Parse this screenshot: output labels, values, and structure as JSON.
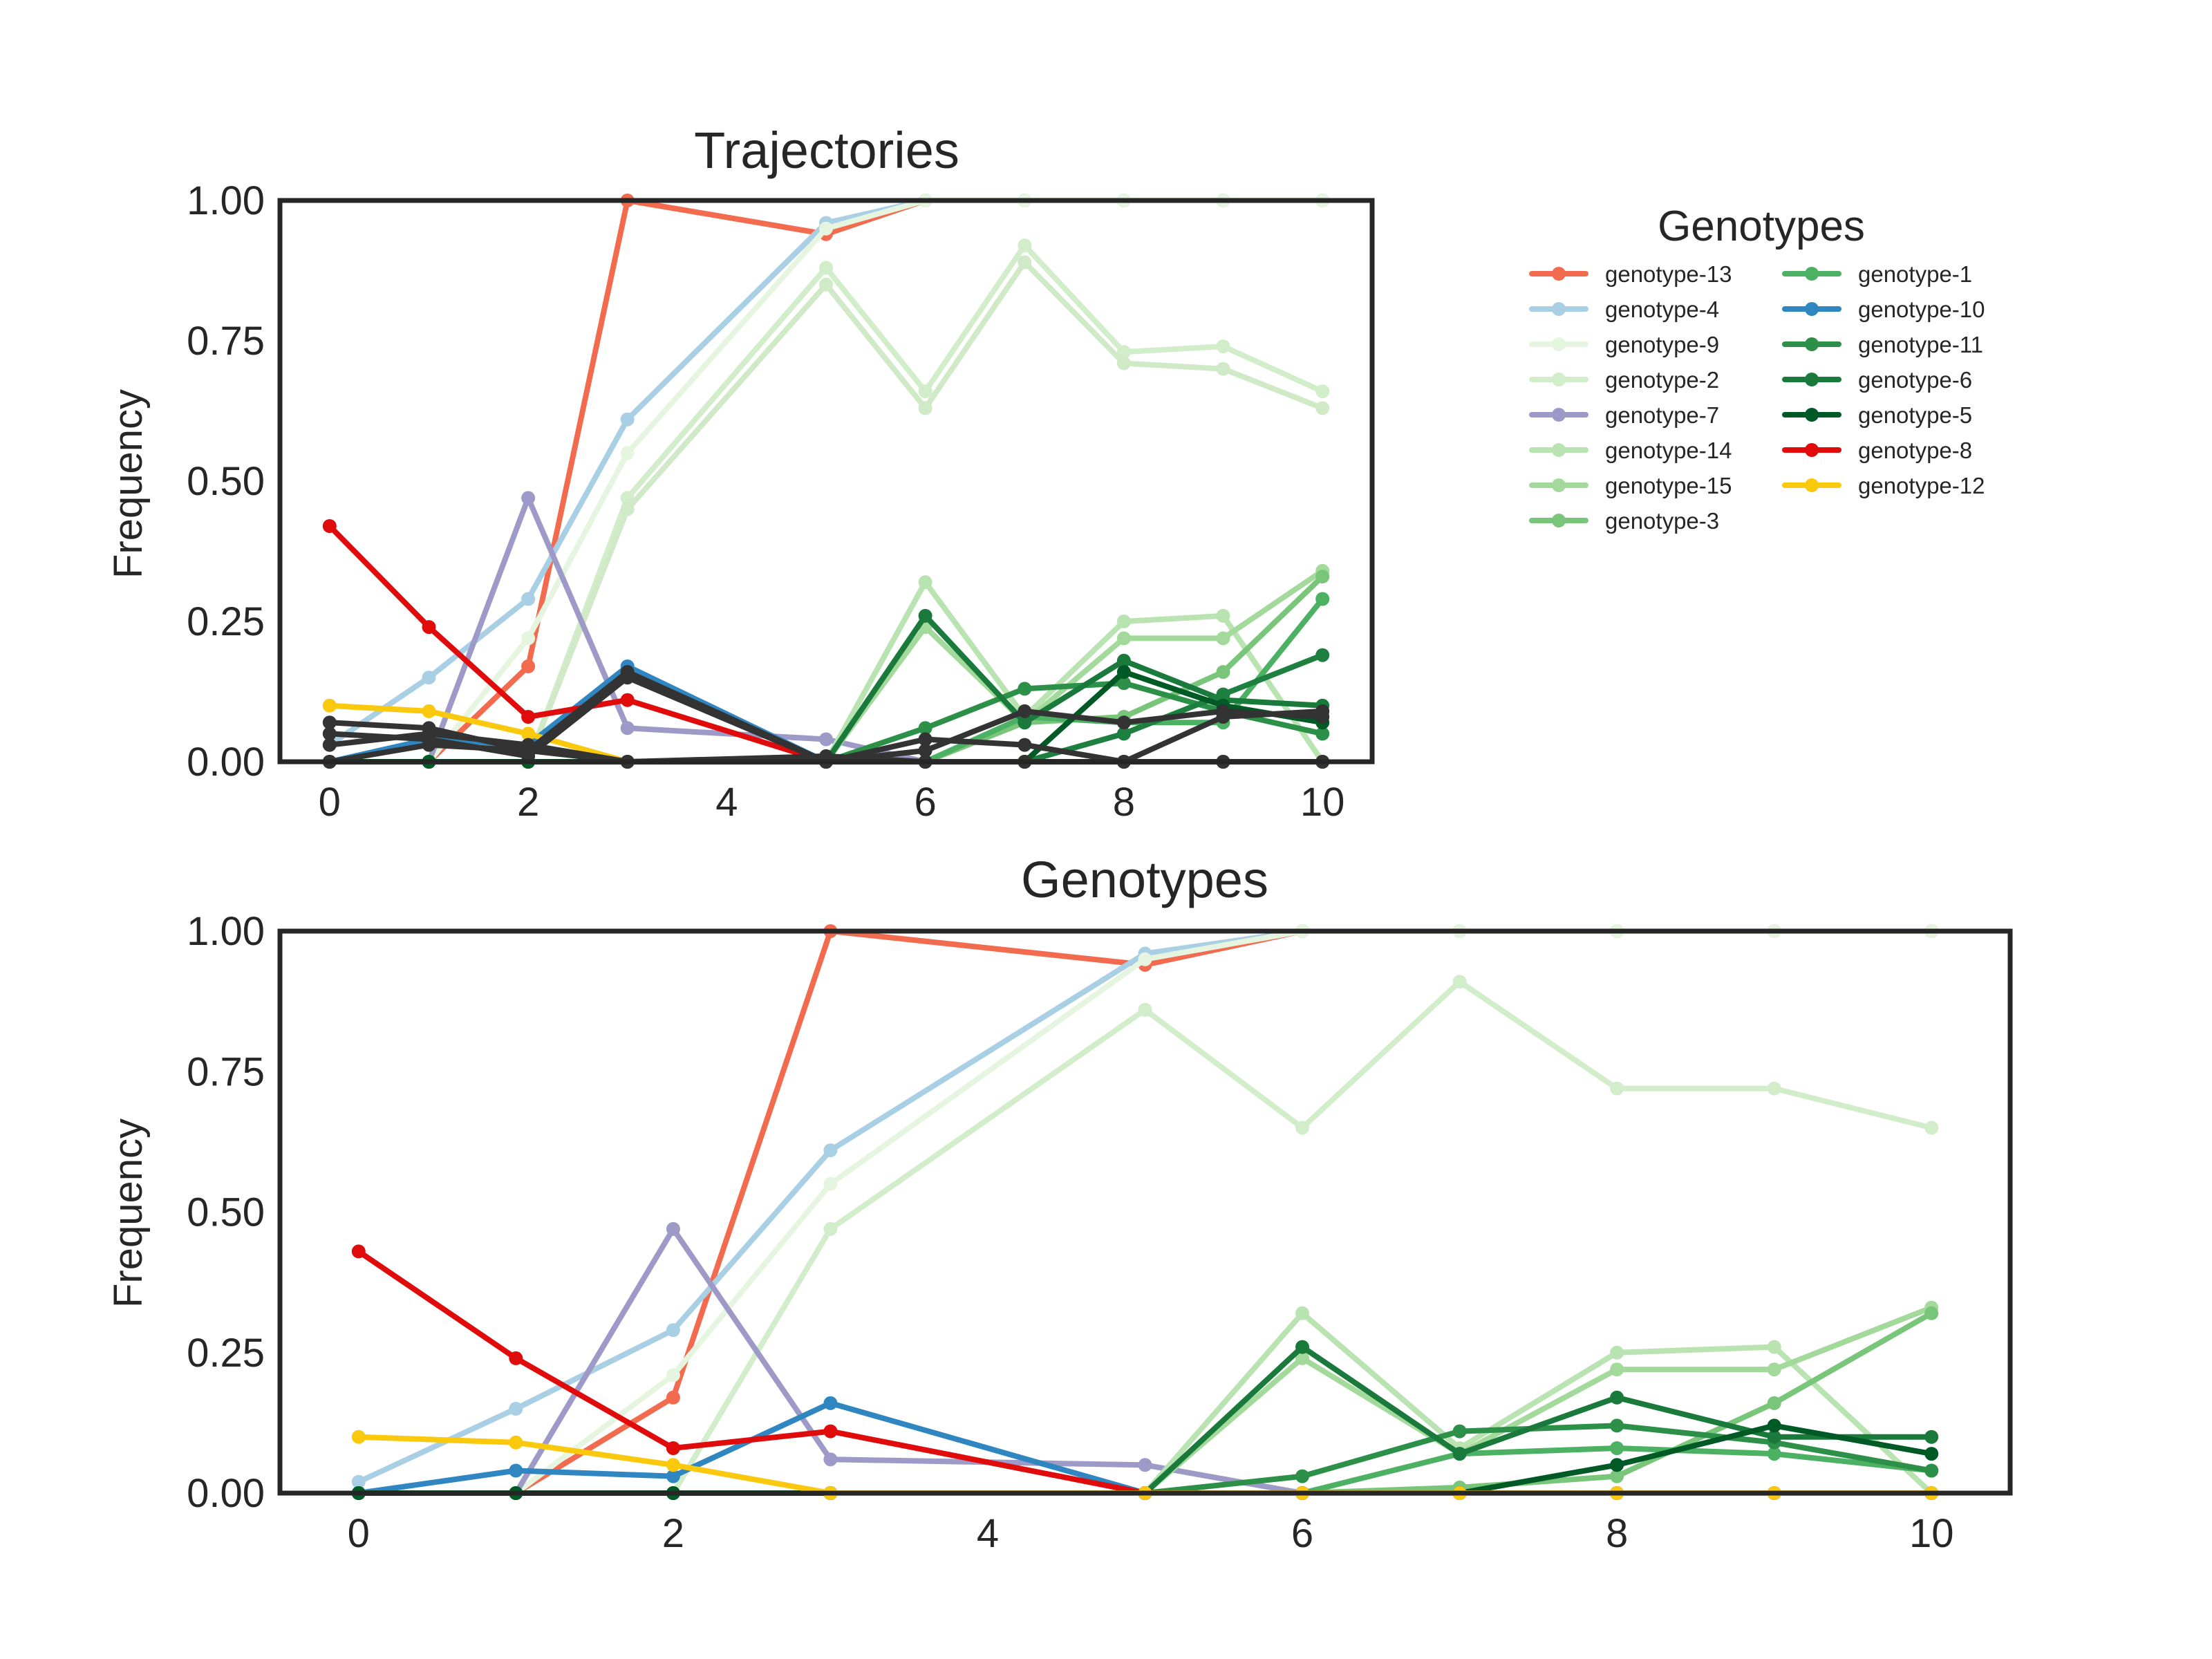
{
  "chart_data": [
    {
      "type": "line",
      "title": "Trajectories",
      "xlabel": "",
      "ylabel": "Frequency",
      "xlim": [
        -0.5,
        10.5
      ],
      "ylim": [
        0,
        1
      ],
      "xticks": [
        "0",
        "2",
        "4",
        "6",
        "8",
        "10"
      ],
      "yticks": [
        "0.00",
        "0.25",
        "0.50",
        "0.75",
        "1.00"
      ],
      "grid": false,
      "series": [
        {
          "color": "#f26b4f",
          "x": [
            0,
            1,
            2,
            3,
            5,
            6,
            7,
            8,
            9,
            10
          ],
          "y": [
            0,
            0,
            0.17,
            1.0,
            0.94,
            1.0,
            1.0,
            1.0,
            1.0,
            1.0
          ]
        },
        {
          "color": "#a9cfe5",
          "x": [
            0,
            1,
            2,
            3,
            5,
            6,
            7,
            8,
            9,
            10
          ],
          "y": [
            0.03,
            0.15,
            0.29,
            0.61,
            0.96,
            1.0,
            1.0,
            1.0,
            1.0,
            1.0
          ]
        },
        {
          "color": "#e6f5e0",
          "x": [
            0,
            1,
            2,
            3,
            5,
            6,
            7,
            8,
            9,
            10
          ],
          "y": [
            0,
            0,
            0.22,
            0.55,
            0.95,
            1.0,
            1.0,
            1.0,
            1.0,
            1.0
          ]
        },
        {
          "color": "#d2edca",
          "x": [
            0,
            1,
            2,
            3,
            5,
            6,
            7,
            8,
            9,
            10
          ],
          "y": [
            0,
            0,
            0,
            0.47,
            0.88,
            0.66,
            0.92,
            0.73,
            0.74,
            0.66
          ]
        },
        {
          "color": "#d0eac8",
          "x": [
            0,
            1,
            2,
            3,
            5,
            6,
            7,
            8,
            9,
            10
          ],
          "y": [
            0,
            0,
            0,
            0.45,
            0.85,
            0.63,
            0.89,
            0.71,
            0.7,
            0.63
          ]
        },
        {
          "color": "#9e9ac8",
          "x": [
            0,
            1,
            2,
            3,
            5,
            6,
            7,
            8,
            9,
            10
          ],
          "y": [
            0,
            0,
            0.47,
            0.06,
            0.04,
            0,
            0,
            0,
            0,
            0
          ]
        },
        {
          "color": "#b9e3b1",
          "x": [
            0,
            1,
            2,
            3,
            5,
            6,
            7,
            8,
            9,
            10
          ],
          "y": [
            0,
            0,
            0,
            0,
            0,
            0.32,
            0.08,
            0.25,
            0.26,
            0
          ]
        },
        {
          "color": "#a3da9b",
          "x": [
            0,
            1,
            2,
            3,
            5,
            6,
            7,
            8,
            9,
            10
          ],
          "y": [
            0,
            0,
            0,
            0,
            0,
            0.24,
            0.07,
            0.22,
            0.22,
            0.34
          ]
        },
        {
          "color": "#79c67a",
          "x": [
            0,
            1,
            2,
            3,
            5,
            6,
            7,
            8,
            9,
            10
          ],
          "y": [
            0,
            0,
            0,
            0,
            0,
            0,
            0.07,
            0.08,
            0.16,
            0.33
          ]
        },
        {
          "color": "#4cb163",
          "x": [
            0,
            1,
            2,
            3,
            5,
            6,
            7,
            8,
            9,
            10
          ],
          "y": [
            0,
            0,
            0,
            0,
            0,
            0,
            0.08,
            0.07,
            0.07,
            0.29
          ]
        },
        {
          "color": "#2f86c0",
          "x": [
            0,
            1,
            2,
            3,
            5,
            6,
            7,
            8,
            9,
            10
          ],
          "y": [
            0,
            0.04,
            0.03,
            0.17,
            0,
            0,
            0,
            0,
            0,
            0
          ]
        },
        {
          "color": "#2d9048",
          "x": [
            0,
            1,
            2,
            3,
            5,
            6,
            7,
            8,
            9,
            10
          ],
          "y": [
            0,
            0,
            0,
            0,
            0,
            0.06,
            0.13,
            0.14,
            0.09,
            0.05
          ]
        },
        {
          "color": "#1a7a3c",
          "x": [
            0,
            1,
            2,
            3,
            5,
            6,
            7,
            8,
            9,
            10
          ],
          "y": [
            0,
            0,
            0,
            0,
            0,
            0.26,
            0.07,
            0.18,
            0.11,
            0.1
          ]
        },
        {
          "color": "#1d8040",
          "x": [
            0,
            1,
            2,
            3,
            5,
            6,
            7,
            8,
            9,
            10
          ],
          "y": [
            0,
            0,
            0,
            0,
            0,
            0,
            0,
            0.05,
            0.12,
            0.19
          ]
        },
        {
          "color": "#005a25",
          "x": [
            0,
            1,
            2,
            3,
            5,
            6,
            7,
            8,
            9,
            10
          ],
          "y": [
            0,
            0,
            0,
            0,
            0,
            0,
            0,
            0.16,
            0.1,
            0.07
          ]
        },
        {
          "color": "#e00b0b",
          "x": [
            0,
            1,
            2,
            3,
            5,
            6,
            7,
            8,
            9,
            10
          ],
          "y": [
            0.42,
            0.24,
            0.08,
            0.11,
            0,
            0,
            0,
            0,
            0,
            0
          ]
        },
        {
          "color": "#fac80c",
          "x": [
            0,
            1,
            2,
            3,
            5,
            6,
            7,
            8,
            9,
            10
          ],
          "y": [
            0.1,
            0.09,
            0.05,
            0,
            0,
            0,
            0,
            0,
            0,
            0
          ]
        },
        {
          "color": "#333333",
          "x": [
            0,
            1,
            2,
            3,
            5,
            6,
            7,
            8,
            9,
            10
          ],
          "y": [
            0.07,
            0.06,
            0.02,
            0.16,
            0,
            0.04,
            0.03,
            0,
            0.08,
            0.09
          ]
        },
        {
          "color": "#333333",
          "x": [
            0,
            1,
            2,
            3,
            5,
            6,
            7,
            8,
            9,
            10
          ],
          "y": [
            0.05,
            0.04,
            0.01,
            0.15,
            0,
            0.02,
            0.09,
            0.07,
            0.09,
            0.08
          ]
        },
        {
          "color": "#333333",
          "x": [
            0,
            1,
            2,
            3,
            5,
            6,
            7,
            8,
            9,
            10
          ],
          "y": [
            0.03,
            0.05,
            0.03,
            0,
            0.01,
            0,
            0,
            0,
            0,
            0
          ]
        },
        {
          "color": "#333333",
          "x": [
            0,
            1,
            2,
            3,
            5,
            6,
            7,
            8,
            9,
            10
          ],
          "y": [
            0,
            0.03,
            0.02,
            0,
            0,
            0,
            0,
            0,
            0,
            0
          ]
        }
      ]
    },
    {
      "type": "line",
      "title": "Genotypes",
      "xlabel": "",
      "ylabel": "Frequency",
      "xlim": [
        -0.5,
        10.5
      ],
      "ylim": [
        0,
        1
      ],
      "xticks": [
        "0",
        "2",
        "4",
        "6",
        "8",
        "10"
      ],
      "yticks": [
        "0.00",
        "0.25",
        "0.50",
        "0.75",
        "1.00"
      ],
      "grid": false,
      "series": [
        {
          "name": "genotype-13",
          "color": "#f26b4f",
          "x": [
            0,
            1,
            2,
            3,
            5,
            6,
            7,
            8,
            9,
            10
          ],
          "y": [
            0,
            0,
            0.17,
            1.0,
            0.94,
            1.0,
            1.0,
            1.0,
            1.0,
            1.0
          ]
        },
        {
          "name": "genotype-4",
          "color": "#a9cfe5",
          "x": [
            0,
            1,
            2,
            3,
            5,
            6,
            7,
            8,
            9,
            10
          ],
          "y": [
            0.02,
            0.15,
            0.29,
            0.61,
            0.96,
            1.0,
            1.0,
            1.0,
            1.0,
            1.0
          ]
        },
        {
          "name": "genotype-9",
          "color": "#e6f5e0",
          "x": [
            0,
            1,
            2,
            3,
            5,
            6,
            7,
            8,
            9,
            10
          ],
          "y": [
            0,
            0,
            0.21,
            0.55,
            0.95,
            1.0,
            1.0,
            1.0,
            1.0,
            1.0
          ]
        },
        {
          "name": "genotype-2",
          "color": "#d2edca",
          "x": [
            0,
            1,
            2,
            3,
            5,
            6,
            7,
            8,
            9,
            10
          ],
          "y": [
            0,
            0,
            0,
            0.47,
            0.86,
            0.65,
            0.91,
            0.72,
            0.72,
            0.65
          ]
        },
        {
          "name": "genotype-7",
          "color": "#9e9ac8",
          "x": [
            0,
            1,
            2,
            3,
            5,
            6,
            7,
            8,
            9,
            10
          ],
          "y": [
            0,
            0,
            0.47,
            0.06,
            0.05,
            0,
            0,
            0,
            0,
            0
          ]
        },
        {
          "name": "genotype-14",
          "color": "#b9e3b1",
          "x": [
            0,
            1,
            2,
            3,
            5,
            6,
            7,
            8,
            9,
            10
          ],
          "y": [
            0,
            0,
            0,
            0,
            0,
            0.32,
            0.08,
            0.25,
            0.26,
            0
          ]
        },
        {
          "name": "genotype-15",
          "color": "#a3da9b",
          "x": [
            0,
            1,
            2,
            3,
            5,
            6,
            7,
            8,
            9,
            10
          ],
          "y": [
            0,
            0,
            0,
            0,
            0,
            0.24,
            0.07,
            0.22,
            0.22,
            0.33
          ]
        },
        {
          "name": "genotype-3",
          "color": "#79c67a",
          "x": [
            0,
            1,
            2,
            3,
            5,
            6,
            7,
            8,
            9,
            10
          ],
          "y": [
            0,
            0,
            0,
            0,
            0,
            0,
            0.01,
            0.03,
            0.16,
            0.32
          ]
        },
        {
          "name": "genotype-1",
          "color": "#4cb163",
          "x": [
            0,
            1,
            2,
            3,
            5,
            6,
            7,
            8,
            9,
            10
          ],
          "y": [
            0,
            0,
            0,
            0,
            0,
            0,
            0.07,
            0.08,
            0.07,
            0.04
          ]
        },
        {
          "name": "genotype-10",
          "color": "#2f86c0",
          "x": [
            0,
            1,
            2,
            3,
            5,
            6,
            7,
            8,
            9,
            10
          ],
          "y": [
            0,
            0.04,
            0.03,
            0.16,
            0,
            0,
            0,
            0,
            0,
            0
          ]
        },
        {
          "name": "genotype-11",
          "color": "#2d9048",
          "x": [
            0,
            1,
            2,
            3,
            5,
            6,
            7,
            8,
            9,
            10
          ],
          "y": [
            0,
            0,
            0,
            0,
            0,
            0.03,
            0.11,
            0.12,
            0.09,
            0.04
          ]
        },
        {
          "name": "genotype-6",
          "color": "#1a7a3c",
          "x": [
            0,
            1,
            2,
            3,
            5,
            6,
            7,
            8,
            9,
            10
          ],
          "y": [
            0,
            0,
            0,
            0,
            0,
            0.26,
            0.07,
            0.17,
            0.1,
            0.1
          ]
        },
        {
          "name": "genotype-5",
          "color": "#005a25",
          "x": [
            0,
            1,
            2,
            3,
            5,
            6,
            7,
            8,
            9,
            10
          ],
          "y": [
            0,
            0,
            0,
            0,
            0,
            0,
            0,
            0.05,
            0.12,
            0.07
          ]
        },
        {
          "name": "genotype-8",
          "color": "#e00b0b",
          "x": [
            0,
            1,
            2,
            3,
            5,
            6,
            7,
            8,
            9,
            10
          ],
          "y": [
            0.43,
            0.24,
            0.08,
            0.11,
            0,
            0,
            0,
            0,
            0,
            0
          ]
        },
        {
          "name": "genotype-12",
          "color": "#fac80c",
          "x": [
            0,
            1,
            2,
            3,
            5,
            6,
            7,
            8,
            9,
            10
          ],
          "y": [
            0.1,
            0.09,
            0.05,
            0,
            0,
            0,
            0,
            0,
            0,
            0
          ]
        }
      ]
    }
  ],
  "legend": {
    "title": "Genotypes",
    "placement": "right of top chart",
    "columns": [
      [
        {
          "label": "genotype-13",
          "color": "#f26b4f"
        },
        {
          "label": "genotype-4",
          "color": "#a9cfe5"
        },
        {
          "label": "genotype-9",
          "color": "#e6f5e0"
        },
        {
          "label": "genotype-2",
          "color": "#d2edca"
        },
        {
          "label": "genotype-7",
          "color": "#9e9ac8"
        },
        {
          "label": "genotype-14",
          "color": "#b9e3b1"
        },
        {
          "label": "genotype-15",
          "color": "#a3da9b"
        },
        {
          "label": "genotype-3",
          "color": "#79c67a"
        }
      ],
      [
        {
          "label": "genotype-1",
          "color": "#4cb163"
        },
        {
          "label": "genotype-10",
          "color": "#2f86c0"
        },
        {
          "label": "genotype-11",
          "color": "#2d9048"
        },
        {
          "label": "genotype-6",
          "color": "#1a7a3c"
        },
        {
          "label": "genotype-5",
          "color": "#005a25"
        },
        {
          "label": "genotype-8",
          "color": "#e00b0b"
        },
        {
          "label": "genotype-12",
          "color": "#fac80c"
        }
      ]
    ]
  }
}
